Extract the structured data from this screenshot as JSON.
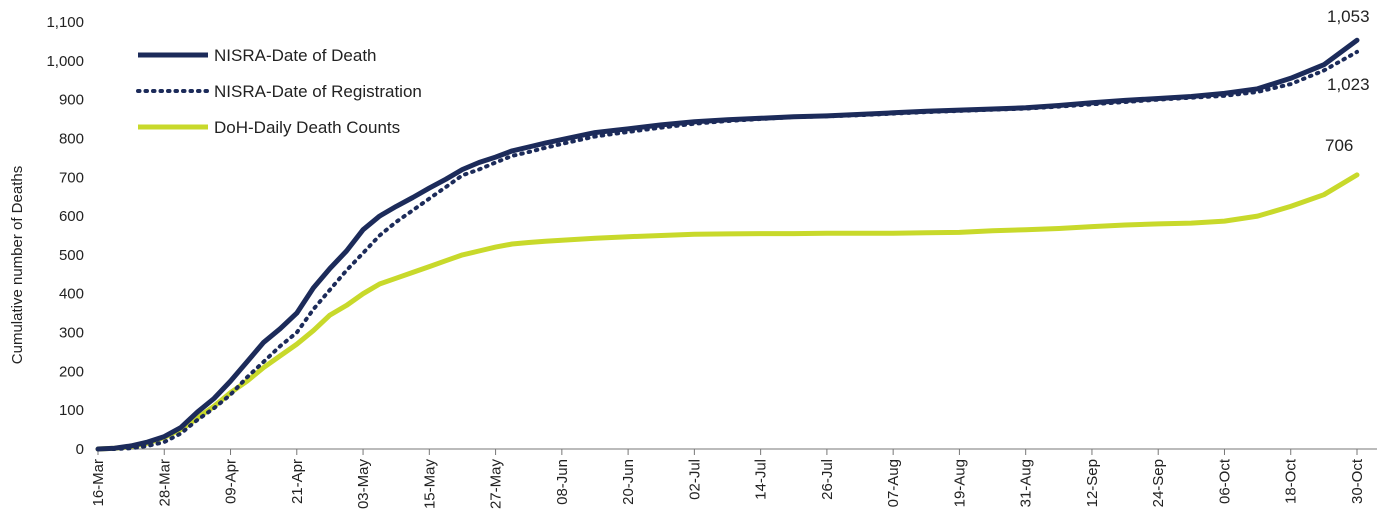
{
  "chart_data": {
    "type": "line",
    "title": "",
    "xlabel": "",
    "ylabel": "Cumulative number of Deaths",
    "ylim": [
      0,
      1100
    ],
    "yticks": [
      0,
      100,
      200,
      300,
      400,
      500,
      600,
      700,
      800,
      900,
      1000,
      1100
    ],
    "ytick_labels": [
      "0",
      "100",
      "200",
      "300",
      "400",
      "500",
      "600",
      "700",
      "800",
      "900",
      "1,000",
      "1,100"
    ],
    "x_start": "16-Mar",
    "x_end": "30-Oct",
    "xtick_labels": [
      "16-Mar",
      "28-Mar",
      "09-Apr",
      "21-Apr",
      "03-May",
      "15-May",
      "27-May",
      "08-Jun",
      "20-Jun",
      "02-Jul",
      "14-Jul",
      "26-Jul",
      "07-Aug",
      "19-Aug",
      "31-Aug",
      "12-Sep",
      "24-Sep",
      "06-Oct",
      "18-Oct",
      "30-Oct"
    ],
    "legend_position": "top-left",
    "grid": false,
    "series": [
      {
        "name": "NISRA-Date of Death",
        "color": "#1c2b5a",
        "style": "solid",
        "end_label": "1,053",
        "points": [
          [
            "16-Mar",
            0
          ],
          [
            "19-Mar",
            2
          ],
          [
            "22-Mar",
            8
          ],
          [
            "25-Mar",
            18
          ],
          [
            "28-Mar",
            32
          ],
          [
            "31-Mar",
            55
          ],
          [
            "03-Apr",
            95
          ],
          [
            "06-Apr",
            130
          ],
          [
            "09-Apr",
            175
          ],
          [
            "12-Apr",
            225
          ],
          [
            "15-Apr",
            275
          ],
          [
            "18-Apr",
            310
          ],
          [
            "21-Apr",
            350
          ],
          [
            "24-Apr",
            415
          ],
          [
            "27-Apr",
            465
          ],
          [
            "30-Apr",
            510
          ],
          [
            "03-May",
            565
          ],
          [
            "06-May",
            600
          ],
          [
            "09-May",
            625
          ],
          [
            "12-May",
            648
          ],
          [
            "15-May",
            672
          ],
          [
            "18-May",
            695
          ],
          [
            "21-May",
            720
          ],
          [
            "24-May",
            738
          ],
          [
            "27-May",
            752
          ],
          [
            "30-May",
            768
          ],
          [
            "02-Jun",
            778
          ],
          [
            "05-Jun",
            788
          ],
          [
            "08-Jun",
            797
          ],
          [
            "14-Jun",
            815
          ],
          [
            "20-Jun",
            825
          ],
          [
            "26-Jun",
            835
          ],
          [
            "02-Jul",
            843
          ],
          [
            "08-Jul",
            848
          ],
          [
            "14-Jul",
            852
          ],
          [
            "20-Jul",
            856
          ],
          [
            "26-Jul",
            858
          ],
          [
            "01-Aug",
            862
          ],
          [
            "07-Aug",
            866
          ],
          [
            "13-Aug",
            870
          ],
          [
            "19-Aug",
            873
          ],
          [
            "25-Aug",
            876
          ],
          [
            "31-Aug",
            879
          ],
          [
            "06-Sep",
            885
          ],
          [
            "12-Sep",
            892
          ],
          [
            "18-Sep",
            898
          ],
          [
            "24-Sep",
            903
          ],
          [
            "30-Sep",
            908
          ],
          [
            "06-Oct",
            916
          ],
          [
            "12-Oct",
            928
          ],
          [
            "18-Oct",
            955
          ],
          [
            "24-Oct",
            990
          ],
          [
            "30-Oct",
            1053
          ]
        ]
      },
      {
        "name": "NISRA-Date of Registration",
        "color": "#1c2b5a",
        "style": "dotted",
        "end_label": "1,023",
        "points": [
          [
            "16-Mar",
            0
          ],
          [
            "19-Mar",
            0
          ],
          [
            "22-Mar",
            2
          ],
          [
            "25-Mar",
            8
          ],
          [
            "28-Mar",
            18
          ],
          [
            "31-Mar",
            40
          ],
          [
            "03-Apr",
            75
          ],
          [
            "06-Apr",
            105
          ],
          [
            "09-Apr",
            140
          ],
          [
            "12-Apr",
            185
          ],
          [
            "15-Apr",
            225
          ],
          [
            "18-Apr",
            265
          ],
          [
            "21-Apr",
            300
          ],
          [
            "24-Apr",
            360
          ],
          [
            "27-Apr",
            410
          ],
          [
            "30-Apr",
            460
          ],
          [
            "03-May",
            505
          ],
          [
            "06-May",
            550
          ],
          [
            "09-May",
            585
          ],
          [
            "12-May",
            615
          ],
          [
            "15-May",
            645
          ],
          [
            "18-May",
            675
          ],
          [
            "21-May",
            705
          ],
          [
            "24-May",
            720
          ],
          [
            "27-May",
            738
          ],
          [
            "30-May",
            755
          ],
          [
            "02-Jun",
            765
          ],
          [
            "05-Jun",
            776
          ],
          [
            "08-Jun",
            786
          ],
          [
            "14-Jun",
            805
          ],
          [
            "20-Jun",
            817
          ],
          [
            "26-Jun",
            828
          ],
          [
            "02-Jul",
            838
          ],
          [
            "08-Jul",
            845
          ],
          [
            "14-Jul",
            850
          ],
          [
            "20-Jul",
            855
          ],
          [
            "26-Jul",
            857
          ],
          [
            "01-Aug",
            860
          ],
          [
            "07-Aug",
            864
          ],
          [
            "13-Aug",
            868
          ],
          [
            "19-Aug",
            871
          ],
          [
            "25-Aug",
            874
          ],
          [
            "31-Aug",
            877
          ],
          [
            "06-Sep",
            882
          ],
          [
            "12-Sep",
            888
          ],
          [
            "18-Sep",
            894
          ],
          [
            "24-Sep",
            900
          ],
          [
            "30-Sep",
            905
          ],
          [
            "06-Oct",
            910
          ],
          [
            "12-Oct",
            920
          ],
          [
            "18-Oct",
            940
          ],
          [
            "24-Oct",
            975
          ],
          [
            "30-Oct",
            1023
          ]
        ]
      },
      {
        "name": "DoH-Daily Death Counts",
        "color": "#c8d92b",
        "style": "solid",
        "end_label": "706",
        "points": [
          [
            "16-Mar",
            0
          ],
          [
            "19-Mar",
            2
          ],
          [
            "22-Mar",
            6
          ],
          [
            "25-Mar",
            15
          ],
          [
            "28-Mar",
            30
          ],
          [
            "31-Mar",
            50
          ],
          [
            "03-Apr",
            80
          ],
          [
            "06-Apr",
            110
          ],
          [
            "09-Apr",
            145
          ],
          [
            "12-Apr",
            175
          ],
          [
            "15-Apr",
            210
          ],
          [
            "18-Apr",
            240
          ],
          [
            "21-Apr",
            270
          ],
          [
            "24-Apr",
            305
          ],
          [
            "27-Apr",
            345
          ],
          [
            "30-Apr",
            370
          ],
          [
            "03-May",
            400
          ],
          [
            "06-May",
            425
          ],
          [
            "09-May",
            440
          ],
          [
            "12-May",
            455
          ],
          [
            "15-May",
            470
          ],
          [
            "18-May",
            485
          ],
          [
            "21-May",
            500
          ],
          [
            "24-May",
            510
          ],
          [
            "27-May",
            520
          ],
          [
            "30-May",
            528
          ],
          [
            "02-Jun",
            532
          ],
          [
            "05-Jun",
            535
          ],
          [
            "08-Jun",
            538
          ],
          [
            "14-Jun",
            543
          ],
          [
            "20-Jun",
            547
          ],
          [
            "26-Jun",
            550
          ],
          [
            "02-Jul",
            553
          ],
          [
            "08-Jul",
            554
          ],
          [
            "14-Jul",
            555
          ],
          [
            "20-Jul",
            555
          ],
          [
            "26-Jul",
            556
          ],
          [
            "01-Aug",
            556
          ],
          [
            "07-Aug",
            556
          ],
          [
            "13-Aug",
            557
          ],
          [
            "19-Aug",
            558
          ],
          [
            "25-Aug",
            562
          ],
          [
            "31-Aug",
            565
          ],
          [
            "06-Sep",
            568
          ],
          [
            "12-Sep",
            573
          ],
          [
            "18-Sep",
            577
          ],
          [
            "24-Sep",
            580
          ],
          [
            "30-Sep",
            582
          ],
          [
            "06-Oct",
            587
          ],
          [
            "12-Oct",
            600
          ],
          [
            "18-Oct",
            625
          ],
          [
            "24-Oct",
            655
          ],
          [
            "30-Oct",
            706
          ]
        ]
      }
    ]
  }
}
